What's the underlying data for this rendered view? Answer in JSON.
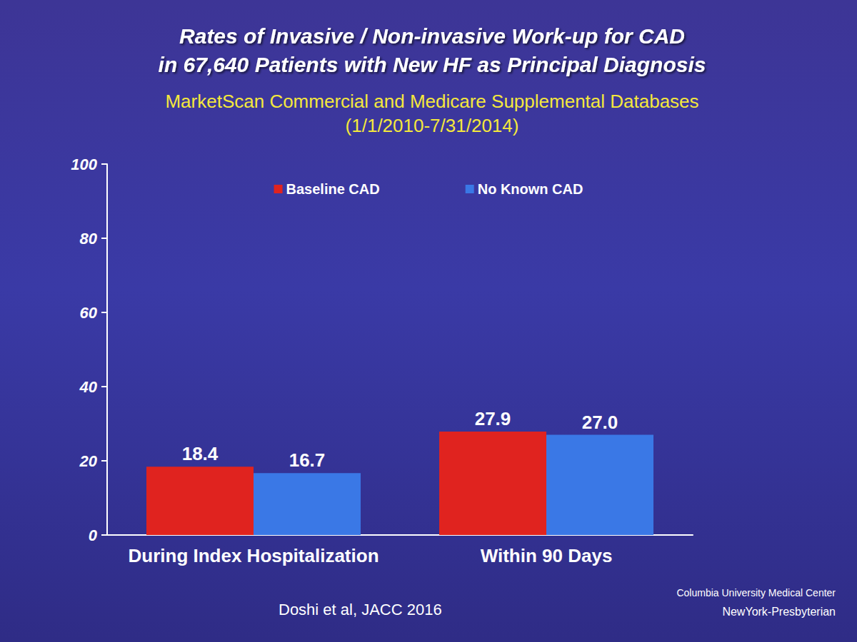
{
  "chart_data": {
    "type": "bar",
    "title": "Rates of Invasive / Non-invasive Work-up for CAD\nin 67,640 Patients with New HF as Principal Diagnosis",
    "subtitle": "MarketScan Commercial and Medicare Supplemental Databases\n(1/1/2010-7/31/2014)",
    "categories": [
      "During Index Hospitalization",
      "Within 90 Days"
    ],
    "series": [
      {
        "name": "Baseline CAD",
        "color": "#e0231f",
        "values": [
          18.4,
          27.9
        ],
        "value_labels": [
          "18.4",
          "27.9"
        ]
      },
      {
        "name": "No Known CAD",
        "color": "#3a78e6",
        "values": [
          16.7,
          27.0
        ],
        "value_labels": [
          "16.7",
          "27.0"
        ]
      }
    ],
    "ylim": [
      0,
      100
    ],
    "yticks": [
      0,
      20,
      40,
      60,
      80,
      100
    ],
    "grid": false,
    "legend": "top",
    "data_labels": true,
    "annotations": [
      "Doshi et al, JACC 2016",
      "Columbia University Medical Center",
      "NewYork-Presbyterian"
    ]
  }
}
